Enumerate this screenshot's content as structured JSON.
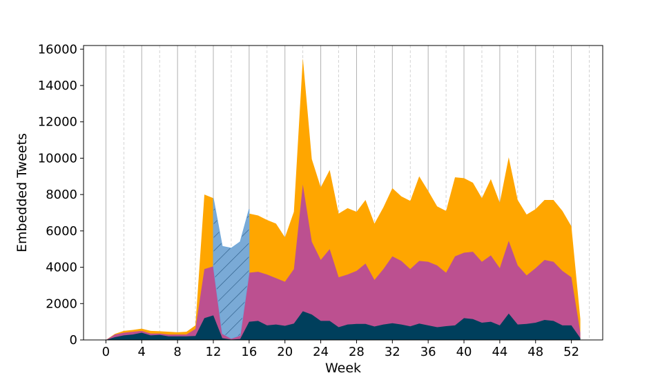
{
  "chart_data": {
    "type": "area",
    "title": "",
    "xlabel": "Week",
    "ylabel": "Embedded Tweets",
    "xlim": [
      -2.5,
      55.5
    ],
    "ylim": [
      0,
      16200
    ],
    "x_ticks": [
      0,
      4,
      8,
      12,
      16,
      20,
      24,
      28,
      32,
      36,
      40,
      44,
      48,
      52
    ],
    "y_ticks": [
      0,
      2000,
      4000,
      6000,
      8000,
      10000,
      12000,
      14000,
      16000
    ],
    "grid": "vertical",
    "legend": "none",
    "x": [
      0,
      1,
      2,
      3,
      4,
      5,
      6,
      7,
      8,
      9,
      10,
      11,
      12,
      13,
      14,
      15,
      16,
      17,
      18,
      19,
      20,
      21,
      22,
      23,
      24,
      25,
      26,
      27,
      28,
      29,
      30,
      31,
      32,
      33,
      34,
      35,
      36,
      37,
      38,
      39,
      40,
      41,
      42,
      43,
      44,
      45,
      46,
      47,
      48,
      49,
      50,
      51,
      52,
      53
    ],
    "series": [
      {
        "color": "#003f5c",
        "values": [
          0,
          150,
          250,
          300,
          400,
          250,
          280,
          200,
          200,
          200,
          220,
          1200,
          1350,
          100,
          20,
          50,
          1000,
          1050,
          800,
          850,
          780,
          900,
          1580,
          1400,
          1050,
          1050,
          700,
          850,
          880,
          880,
          740,
          850,
          920,
          850,
          750,
          900,
          800,
          700,
          760,
          800,
          1200,
          1150,
          950,
          1000,
          800,
          1450,
          850,
          880,
          950,
          1100,
          1050,
          800,
          800,
          100
        ]
      },
      {
        "color": "#bc5090",
        "values": [
          0,
          300,
          400,
          450,
          500,
          350,
          350,
          300,
          300,
          300,
          600,
          3900,
          4050,
          350,
          80,
          250,
          3700,
          3750,
          3600,
          3400,
          3200,
          3900,
          8550,
          5400,
          4400,
          5000,
          3450,
          3600,
          3800,
          4200,
          3300,
          3900,
          4600,
          4350,
          3900,
          4350,
          4300,
          4100,
          3700,
          4600,
          4800,
          4850,
          4300,
          4650,
          3950,
          5450,
          4100,
          3550,
          3950,
          4400,
          4300,
          3800,
          3450,
          400
        ]
      },
      {
        "color": "#ffa600",
        "values": [
          0,
          330,
          500,
          550,
          620,
          500,
          480,
          450,
          420,
          450,
          800,
          8000,
          7800,
          600,
          200,
          500,
          6950,
          6850,
          6600,
          6400,
          5650,
          7050,
          15500,
          9950,
          8400,
          9350,
          6950,
          7250,
          7050,
          7700,
          6400,
          7300,
          8350,
          7900,
          7650,
          9000,
          8200,
          7350,
          7100,
          8950,
          8900,
          8650,
          7800,
          8850,
          7550,
          10050,
          7700,
          6900,
          7200,
          7700,
          7700,
          7100,
          6250,
          1150
        ]
      }
    ],
    "hatched_band": {
      "color": "#6fa8dc",
      "x": [
        12,
        13,
        14,
        15,
        16
      ],
      "lower": [
        4050,
        350,
        80,
        250,
        3700
      ],
      "upper": [
        7800,
        5150,
        5050,
        5400,
        7200
      ]
    }
  }
}
